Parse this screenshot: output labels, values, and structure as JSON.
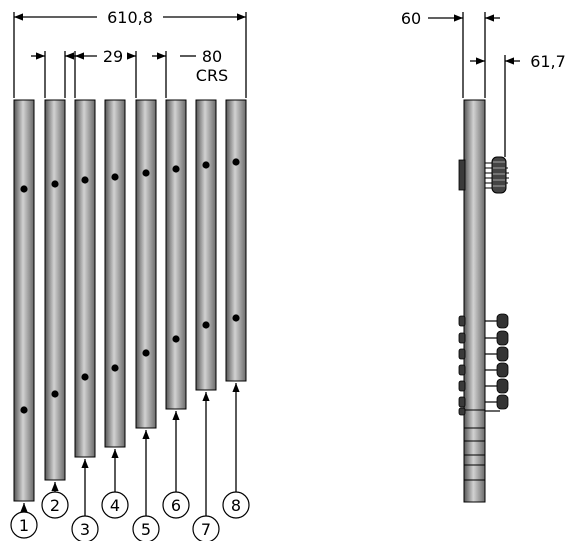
{
  "dimensions": {
    "overall_width": "610,8",
    "gap": "29",
    "spacing_value": "80",
    "spacing_unit": "CRS",
    "side_thickness": "60",
    "side_offset": "61,7"
  },
  "balloons": [
    "1",
    "2",
    "3",
    "4",
    "5",
    "6",
    "7",
    "8"
  ],
  "colors": {
    "tube_dark": "#5a5a5a",
    "tube_light": "#cfcfcf",
    "outline": "#000000",
    "dot": "#000000"
  }
}
